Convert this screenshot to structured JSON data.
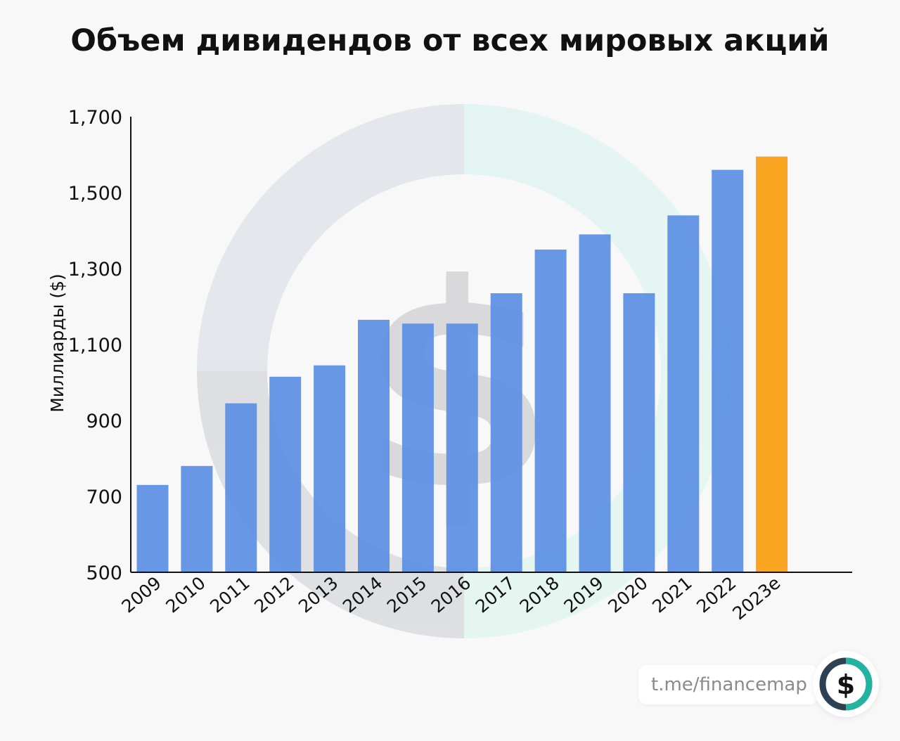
{
  "chart_data": {
    "type": "bar",
    "title": "Объем дивидендов от всех мировых акций",
    "ylabel": "Миллиарды ($)",
    "xlabel": "",
    "ylim": [
      500,
      1700
    ],
    "yticks": [
      "500",
      "700",
      "900",
      "1,100",
      "1,300",
      "1,500",
      "1,700"
    ],
    "ytick_values": [
      500,
      700,
      900,
      1100,
      1300,
      1500,
      1700
    ],
    "categories": [
      "2009",
      "2010",
      "2011",
      "2012",
      "2013",
      "2014",
      "2015",
      "2016",
      "2017",
      "2018",
      "2019",
      "2020",
      "2021",
      "2022",
      "2023e"
    ],
    "values": [
      730,
      780,
      945,
      1015,
      1045,
      1165,
      1155,
      1155,
      1235,
      1350,
      1390,
      1235,
      1440,
      1560,
      1595
    ],
    "colors": {
      "bar": "#5b8fe3",
      "highlight": "#f9a521",
      "highlight_category": "2023e"
    }
  },
  "brand": {
    "link_text": "t.me/financemap",
    "logo_icon": "dollar-sign-icon",
    "colors": {
      "ring_teal": "#23b3a3",
      "ring_dark": "#2c4152"
    }
  },
  "watermark": {
    "icon": "dollar-sign-icon",
    "colors": {
      "gray": "#dcdcde",
      "teal": "#def4f1"
    }
  }
}
